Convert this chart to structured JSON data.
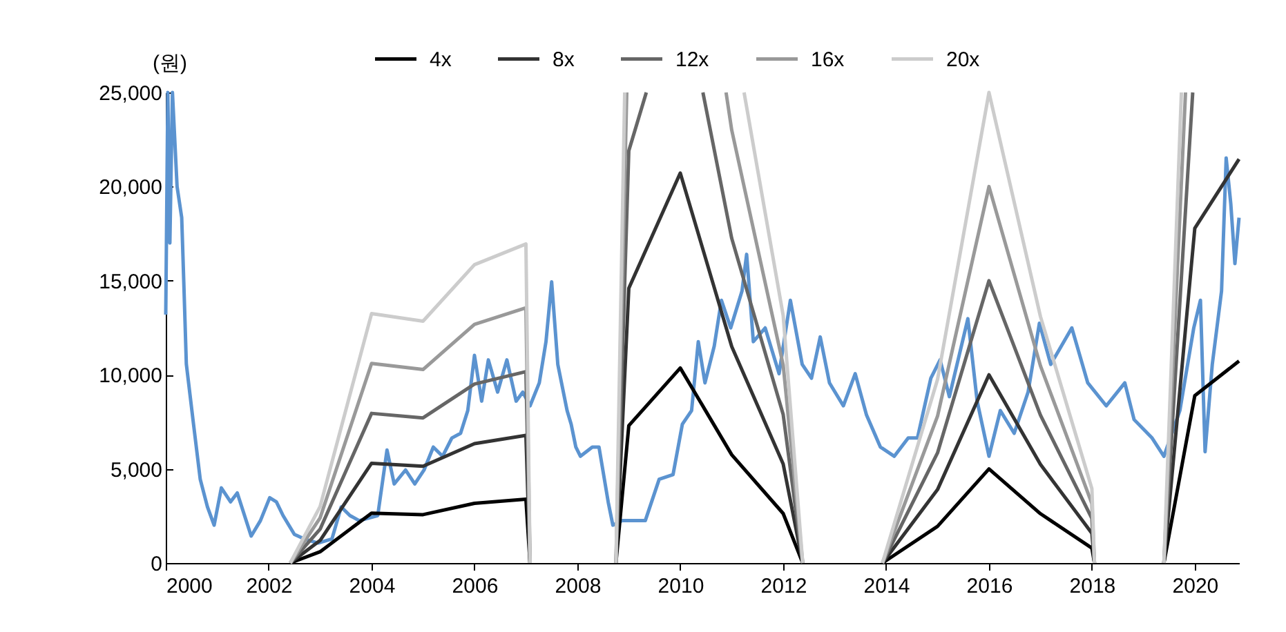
{
  "chart_data": {
    "type": "line",
    "ylabel": "(원)",
    "xlim": [
      2000,
      2020.86
    ],
    "xticks": [
      2000,
      2002,
      2004,
      2006,
      2008,
      2010,
      2012,
      2014,
      2016,
      2018,
      2020
    ],
    "ylim": [
      0,
      25000
    ],
    "yticks": [
      0,
      {
        "value": 5000,
        "label": "5,000"
      },
      {
        "value": 10000,
        "label": "10,000"
      },
      {
        "value": 15000,
        "label": "15,000"
      },
      {
        "value": 20000,
        "label": "20,000"
      },
      {
        "value": 25000,
        "label": "25,000"
      }
    ],
    "grid": false,
    "legend": "top",
    "series": [
      {
        "color": "#5b93d0",
        "x": [
          2000,
          2000.04,
          2000.08,
          2000.13,
          2000.22,
          2000.31,
          2000.35,
          2000.4,
          2000.54,
          2000.67,
          2000.81,
          2000.94,
          2001.08,
          2001.26,
          2001.39,
          2001.66,
          2001.84,
          2002.02,
          2002.15,
          2002.28,
          2002.5,
          2002.69,
          2002.96,
          2003.23,
          2003.41,
          2003.58,
          2003.76,
          2004.12,
          2004.3,
          2004.44,
          2004.66,
          2004.84,
          2005.02,
          2005.2,
          2005.38,
          2005.56,
          2005.73,
          2005.87,
          2006,
          2006.14,
          2006.27,
          2006.45,
          2006.63,
          2006.81,
          2006.94,
          2007.08,
          2007.26,
          2007.39,
          2007.5,
          2007.62,
          2007.8,
          2007.88,
          2007.97,
          2008.06,
          2008.29,
          2008.42,
          2008.6,
          2008.69,
          2008.87,
          2009.32,
          2009.59,
          2009.86,
          2010.04,
          2010.22,
          2010.35,
          2010.48,
          2010.66,
          2010.8,
          2010.98,
          2011.2,
          2011.29,
          2011.42,
          2011.65,
          2011.92,
          2012.14,
          2012.37,
          2012.55,
          2012.72,
          2012.9,
          2013.17,
          2013.4,
          2013.62,
          2013.89,
          2014.16,
          2014.43,
          2014.61,
          2014.87,
          2015.05,
          2015.23,
          2015.59,
          2015.77,
          2016,
          2016.22,
          2016.49,
          2016.76,
          2016.98,
          2017.2,
          2017.61,
          2017.92,
          2018.28,
          2018.64,
          2018.82,
          2019.17,
          2019.4,
          2019.71,
          2019.98,
          2020.11,
          2020.2,
          2020.34,
          2020.52,
          2020.61,
          2020.7,
          2020.78,
          2020.86
        ],
        "values": [
          13200,
          25000,
          17000,
          25000,
          20000,
          18350,
          14960,
          10570,
          7370,
          4450,
          2980,
          2010,
          3990,
          3250,
          3720,
          1430,
          2250,
          3470,
          3250,
          2520,
          1520,
          1280,
          1060,
          1280,
          2980,
          2520,
          2250,
          2520,
          6000,
          4200,
          4940,
          4200,
          4940,
          6160,
          5670,
          6640,
          6890,
          8100,
          11030,
          8600,
          10790,
          9080,
          10790,
          8600,
          9080,
          8350,
          9570,
          11760,
          14940,
          10550,
          8100,
          7370,
          6160,
          5670,
          6160,
          6160,
          3230,
          2010,
          2250,
          2250,
          4450,
          4700,
          7370,
          8100,
          11760,
          9570,
          11520,
          13960,
          12490,
          14450,
          16400,
          11760,
          12490,
          10060,
          13960,
          10550,
          9820,
          12010,
          9570,
          8350,
          10060,
          7860,
          6160,
          5670,
          6640,
          6640,
          9820,
          10790,
          8840,
          12980,
          8600,
          5670,
          8100,
          6890,
          9080,
          12740,
          10550,
          12490,
          9570,
          8350,
          9570,
          7620,
          6640,
          5670,
          8100,
          12490,
          13960,
          5910,
          10550,
          14450,
          21520,
          19080,
          15910,
          18350
        ]
      },
      {
        "name": "4x",
        "color": "#000000",
        "x": [
          2002.42,
          2003,
          2004,
          2005,
          2006,
          2007,
          2007.08,
          2008,
          2008.75,
          2009,
          2010,
          2011,
          2012,
          2012.38,
          2013,
          2013.93,
          2015,
          2016,
          2017,
          2018,
          2018.05,
          2019,
          2019.4,
          2020,
          2020.86
        ],
        "values": [
          0,
          600,
          2650,
          2570,
          3170,
          3390,
          0,
          null,
          0,
          7300,
          10360,
          5750,
          2630,
          0,
          null,
          0,
          1950,
          5000,
          2620,
          790,
          0,
          null,
          0,
          8890,
          10730
        ]
      },
      {
        "name": "8x",
        "color": "#333333",
        "x": [
          2002.42,
          2003,
          2004,
          2005,
          2006,
          2007,
          2007.08,
          2008,
          2008.75,
          2009,
          2010,
          2011,
          2012,
          2012.38,
          2013,
          2013.93,
          2015,
          2016,
          2017,
          2018,
          2018.05,
          2019,
          2019.4,
          2020,
          2020.86
        ],
        "values": [
          0,
          1200,
          5300,
          5140,
          6340,
          6780,
          0,
          null,
          0,
          14600,
          20720,
          11500,
          5260,
          0,
          null,
          0,
          3900,
          10000,
          5240,
          1580,
          0,
          null,
          0,
          17780,
          21460
        ]
      },
      {
        "name": "12x",
        "color": "#666666",
        "x": [
          2002.42,
          2003,
          2004,
          2005,
          2006,
          2007,
          2007.08,
          2008,
          2008.75,
          2009,
          2009.34,
          2010,
          2010.44,
          2011,
          2012,
          2012.38,
          2013,
          2013.93,
          2015,
          2016,
          2017,
          2018,
          2018.05,
          2019,
          2019.4,
          2019.96
        ],
        "values": [
          0,
          1800,
          7950,
          7710,
          9510,
          10170,
          0,
          null,
          0,
          21900,
          25000,
          null,
          25000,
          17250,
          7890,
          0,
          null,
          0,
          5850,
          15000,
          7860,
          2370,
          0,
          null,
          0,
          25000
        ]
      },
      {
        "name": "16x",
        "color": "#999999",
        "x": [
          2002.42,
          2003,
          2004,
          2005,
          2006,
          2007,
          2007.08,
          2008,
          2008.75,
          2008.96,
          2010,
          2010.89,
          2011,
          2012,
          2012.38,
          2013,
          2013.93,
          2015,
          2016,
          2017,
          2018,
          2018.05,
          2019,
          2019.4,
          2019.82
        ],
        "values": [
          0,
          2400,
          10600,
          10280,
          12680,
          13560,
          0,
          null,
          0,
          25000,
          null,
          25000,
          23000,
          10520,
          0,
          null,
          0,
          7800,
          20000,
          10480,
          3160,
          0,
          null,
          0,
          25000
        ]
      },
      {
        "name": "20x",
        "color": "#cccccc",
        "x": [
          2002.42,
          2003,
          2004,
          2005,
          2006,
          2007,
          2007.08,
          2008,
          2008.75,
          2008.92,
          2010,
          2011.24,
          2012,
          2012.38,
          2013,
          2013.93,
          2015,
          2016,
          2017,
          2018,
          2018.05,
          2019,
          2019.4,
          2019.74
        ],
        "values": [
          0,
          3000,
          13250,
          12850,
          15850,
          16950,
          0,
          null,
          0,
          25000,
          null,
          25000,
          13150,
          0,
          null,
          0,
          9750,
          25000,
          13100,
          3950,
          0,
          null,
          0,
          25000
        ]
      }
    ]
  }
}
